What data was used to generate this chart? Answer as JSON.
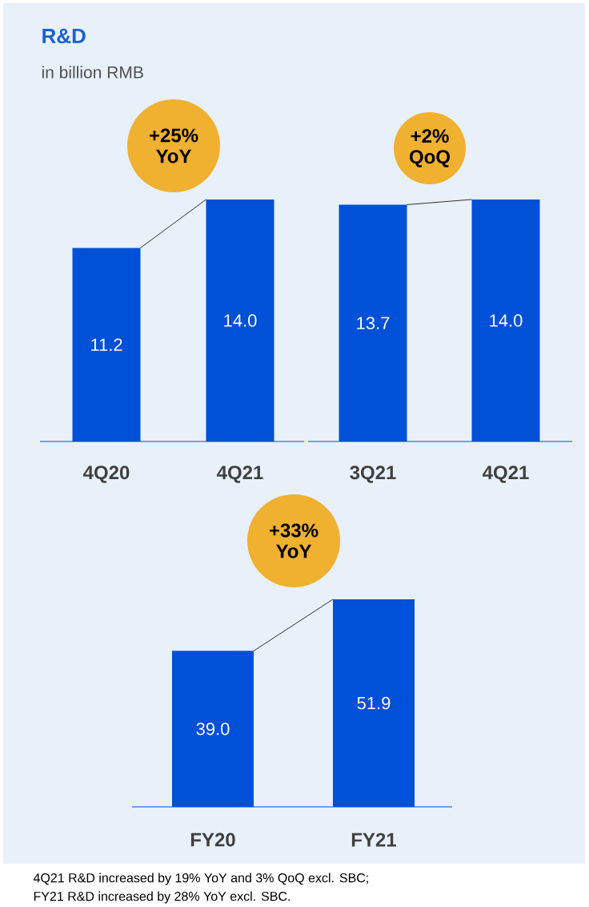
{
  "chart_data": [
    {
      "type": "bar",
      "title": "R&D",
      "subtitle": "in billion RMB",
      "categories": [
        "4Q20",
        "4Q21"
      ],
      "values": [
        11.2,
        14.0
      ],
      "value_labels": [
        "11.2",
        "14.0"
      ],
      "color": "#0050d8",
      "annotations": [
        "+25% YoY"
      ]
    },
    {
      "type": "bar",
      "categories": [
        "3Q21",
        "4Q21"
      ],
      "values": [
        13.7,
        14.0
      ],
      "value_labels": [
        "13.7",
        "14.0"
      ],
      "color": "#0050d8",
      "annotations": [
        "+2% QoQ"
      ]
    },
    {
      "type": "bar",
      "categories": [
        "FY20",
        "FY21"
      ],
      "values": [
        39.0,
        51.9
      ],
      "value_labels": [
        "39.0",
        "51.9"
      ],
      "color": "#0050d8",
      "annotations": [
        "+33% YoY",
        "4Q21 R&D increased by 19% YoY and 3% QoQ excl. SBC;",
        "FY21 R&D increased by 28% YoY excl. SBC."
      ]
    }
  ]
}
